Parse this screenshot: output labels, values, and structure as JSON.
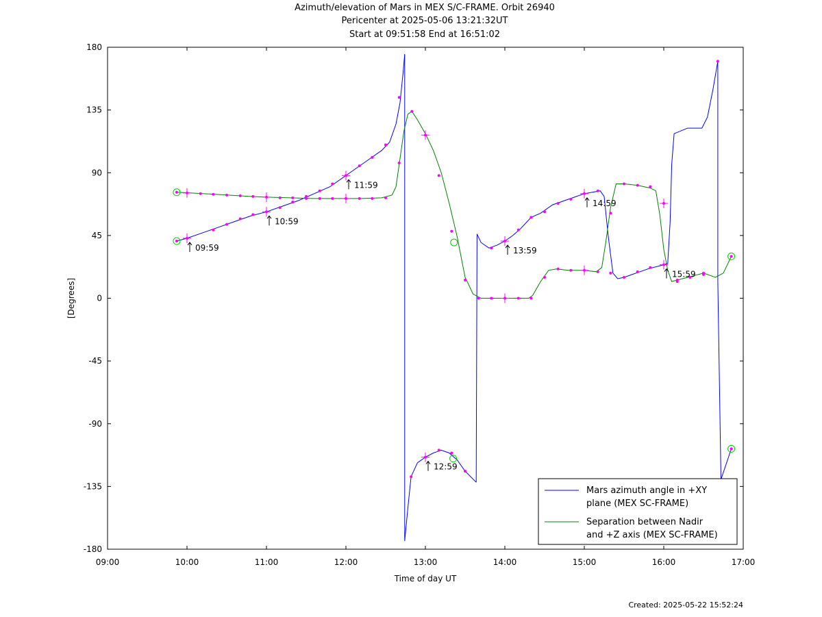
{
  "chart_data": {
    "type": "line",
    "title": "Azimuth/elevation of Mars in MEX S/C-FRAME.  Orbit 26940",
    "subtitle_lines": [
      "Pericenter at 2025-05-06 13:21:32UT",
      "Start at 09:51:58 End at 16:51:02"
    ],
    "xlabel": "Time of day UT",
    "ylabel": "[Degrees]",
    "xlim": [
      9.0,
      17.0
    ],
    "ylim": [
      -180,
      180
    ],
    "x_ticks": [
      {
        "value": 9,
        "label": "09:00"
      },
      {
        "value": 10,
        "label": "10:00"
      },
      {
        "value": 11,
        "label": "11:00"
      },
      {
        "value": 12,
        "label": "12:00"
      },
      {
        "value": 13,
        "label": "13:00"
      },
      {
        "value": 14,
        "label": "14:00"
      },
      {
        "value": 15,
        "label": "15:00"
      },
      {
        "value": 16,
        "label": "16:00"
      },
      {
        "value": 17,
        "label": "17:00"
      }
    ],
    "y_ticks": [
      {
        "value": 180,
        "label": "180"
      },
      {
        "value": 135,
        "label": "135"
      },
      {
        "value": 90,
        "label": "90"
      },
      {
        "value": 45,
        "label": "45"
      },
      {
        "value": 0,
        "label": "0"
      },
      {
        "value": -45,
        "label": "-45"
      },
      {
        "value": -90,
        "label": "-90"
      },
      {
        "value": -135,
        "label": "-135"
      },
      {
        "value": -180,
        "label": "-180"
      }
    ],
    "grid": false,
    "legend_position": "bottom-right",
    "series": [
      {
        "name": "Mars azimuth angle in +XY plane (MEX SC-FRAME)",
        "legend_lines": [
          "Mars azimuth angle in +XY",
          "plane (MEX SC-FRAME)"
        ],
        "color": "#0000ff",
        "segments": [
          [
            [
              9.87,
              41
            ],
            [
              10.0,
              43
            ],
            [
              10.2,
              47
            ],
            [
              10.4,
              51
            ],
            [
              10.6,
              55
            ],
            [
              10.8,
              59
            ],
            [
              11.0,
              62
            ],
            [
              11.2,
              66
            ],
            [
              11.4,
              70
            ],
            [
              11.6,
              75
            ],
            [
              11.8,
              80
            ],
            [
              12.0,
              88
            ],
            [
              12.15,
              94
            ],
            [
              12.3,
              100
            ],
            [
              12.45,
              106
            ],
            [
              12.55,
              112
            ],
            [
              12.63,
              125
            ],
            [
              12.68,
              140
            ],
            [
              12.72,
              162
            ],
            [
              12.74,
              175
            ]
          ],
          [
            [
              12.74,
              175
            ],
            [
              12.74,
              -174
            ]
          ],
          [
            [
              12.74,
              -174
            ],
            [
              12.78,
              -150
            ],
            [
              12.82,
              -128
            ],
            [
              12.9,
              -118
            ],
            [
              13.0,
              -114
            ],
            [
              13.1,
              -111
            ],
            [
              13.2,
              -109
            ],
            [
              13.3,
              -111
            ],
            [
              13.4,
              -116
            ],
            [
              13.5,
              -124
            ],
            [
              13.64,
              -132
            ]
          ],
          [
            [
              13.64,
              -132
            ],
            [
              13.65,
              46
            ]
          ],
          [
            [
              13.65,
              46
            ],
            [
              13.7,
              40
            ],
            [
              13.8,
              36
            ],
            [
              13.9,
              38
            ],
            [
              14.0,
              41
            ],
            [
              14.1,
              45
            ],
            [
              14.2,
              50
            ],
            [
              14.33,
              58
            ],
            [
              14.45,
              61
            ],
            [
              14.6,
              67
            ],
            [
              14.75,
              70
            ],
            [
              14.9,
              73
            ],
            [
              15.0,
              75
            ],
            [
              15.1,
              76
            ],
            [
              15.2,
              77
            ],
            [
              15.25,
              73
            ],
            [
              15.3,
              45
            ],
            [
              15.36,
              18
            ],
            [
              15.42,
              14
            ],
            [
              15.5,
              15
            ],
            [
              15.6,
              17
            ],
            [
              15.7,
              19
            ],
            [
              15.8,
              21
            ],
            [
              16.0,
              24
            ],
            [
              16.05,
              25
            ],
            [
              16.08,
              55
            ],
            [
              16.1,
              96
            ],
            [
              16.13,
              118
            ],
            [
              16.3,
              122
            ],
            [
              16.48,
              122
            ],
            [
              16.55,
              130
            ],
            [
              16.62,
              150
            ],
            [
              16.68,
              170
            ]
          ],
          [
            [
              16.68,
              170
            ],
            [
              16.68,
              12
            ]
          ],
          [
            [
              16.68,
              12
            ],
            [
              16.72,
              -130
            ],
            [
              16.85,
              -108
            ]
          ]
        ],
        "markers": [
          [
            9.87,
            41
          ],
          [
            10.0,
            43
          ],
          [
            10.33,
            49
          ],
          [
            10.5,
            53
          ],
          [
            10.67,
            57
          ],
          [
            10.83,
            60
          ],
          [
            11.0,
            62
          ],
          [
            11.17,
            65
          ],
          [
            11.33,
            69
          ],
          [
            11.5,
            73
          ],
          [
            11.67,
            77
          ],
          [
            11.83,
            82
          ],
          [
            12.0,
            88
          ],
          [
            12.17,
            95
          ],
          [
            12.33,
            101
          ],
          [
            12.5,
            110
          ],
          [
            12.67,
            144
          ],
          [
            12.82,
            -128
          ],
          [
            13.0,
            -114
          ],
          [
            13.17,
            -109
          ],
          [
            13.33,
            -111
          ],
          [
            13.5,
            -124
          ],
          [
            13.83,
            36
          ],
          [
            14.0,
            41
          ],
          [
            14.17,
            49
          ],
          [
            14.33,
            58
          ],
          [
            14.5,
            62
          ],
          [
            14.67,
            68
          ],
          [
            14.83,
            71
          ],
          [
            15.0,
            75
          ],
          [
            15.17,
            77
          ],
          [
            15.33,
            18
          ],
          [
            15.5,
            15
          ],
          [
            15.67,
            19
          ],
          [
            15.83,
            22
          ],
          [
            16.0,
            24
          ],
          [
            16.17,
            12
          ],
          [
            16.33,
            15
          ],
          [
            16.5,
            17
          ],
          [
            16.68,
            170
          ],
          [
            16.85,
            -108
          ]
        ],
        "crosses": [
          [
            10.0,
            43
          ],
          [
            11.0,
            62
          ],
          [
            12.0,
            88
          ],
          [
            13.0,
            -114
          ],
          [
            14.0,
            41
          ],
          [
            15.0,
            75
          ],
          [
            16.0,
            24
          ]
        ],
        "circles": [
          [
            9.87,
            41
          ],
          [
            13.35,
            -115
          ],
          [
            16.85,
            -108
          ]
        ]
      },
      {
        "name": "Separation between Nadir and +Z axis (MEX SC-FRAME)",
        "legend_lines": [
          "Separation between Nadir",
          "and +Z axis (MEX SC-FRAME)"
        ],
        "color": "#008000",
        "segments": [
          [
            [
              9.87,
              76
            ],
            [
              10.2,
              75
            ],
            [
              10.5,
              74
            ],
            [
              10.8,
              73
            ],
            [
              11.0,
              72.5
            ],
            [
              11.3,
              72
            ],
            [
              11.6,
              71.5
            ],
            [
              11.9,
              71.5
            ],
            [
              12.2,
              71.5
            ],
            [
              12.45,
              72
            ],
            [
              12.58,
              74
            ],
            [
              12.63,
              80
            ],
            [
              12.68,
              100
            ],
            [
              12.73,
              120
            ],
            [
              12.78,
              132
            ],
            [
              12.83,
              134
            ],
            [
              12.9,
              128
            ],
            [
              13.0,
              118
            ],
            [
              13.1,
              106
            ],
            [
              13.2,
              90
            ],
            [
              13.3,
              68
            ],
            [
              13.4,
              44
            ],
            [
              13.5,
              15
            ],
            [
              13.6,
              3
            ],
            [
              13.7,
              0
            ],
            [
              13.9,
              0
            ],
            [
              14.1,
              0
            ],
            [
              14.3,
              0
            ],
            [
              14.35,
              2
            ],
            [
              14.45,
              12
            ],
            [
              14.55,
              20
            ],
            [
              14.65,
              21
            ],
            [
              14.8,
              20
            ],
            [
              15.0,
              20
            ],
            [
              15.15,
              19
            ],
            [
              15.22,
              22
            ],
            [
              15.27,
              40
            ],
            [
              15.33,
              65
            ],
            [
              15.4,
              82
            ],
            [
              15.5,
              82
            ],
            [
              15.67,
              81
            ],
            [
              15.83,
              79
            ],
            [
              15.9,
              77
            ],
            [
              15.95,
              60
            ],
            [
              16.0,
              35
            ],
            [
              16.05,
              20
            ],
            [
              16.1,
              12
            ],
            [
              16.3,
              15
            ],
            [
              16.5,
              18
            ],
            [
              16.65,
              15
            ],
            [
              16.75,
              18
            ],
            [
              16.85,
              30
            ]
          ]
        ],
        "markers": [
          [
            9.87,
            76
          ],
          [
            10.0,
            75.5
          ],
          [
            10.17,
            75
          ],
          [
            10.33,
            74.5
          ],
          [
            10.5,
            74
          ],
          [
            10.67,
            73.5
          ],
          [
            10.83,
            73
          ],
          [
            11.0,
            72.5
          ],
          [
            11.17,
            72
          ],
          [
            11.33,
            72
          ],
          [
            11.5,
            71.5
          ],
          [
            11.67,
            71.5
          ],
          [
            11.83,
            71.5
          ],
          [
            12.0,
            71.5
          ],
          [
            12.17,
            71.5
          ],
          [
            12.33,
            71.5
          ],
          [
            12.5,
            72
          ],
          [
            12.67,
            97
          ],
          [
            12.83,
            134
          ],
          [
            13.0,
            117
          ],
          [
            13.17,
            88
          ],
          [
            13.33,
            48
          ],
          [
            13.5,
            13
          ],
          [
            13.67,
            0
          ],
          [
            13.83,
            0
          ],
          [
            14.0,
            0
          ],
          [
            14.17,
            0
          ],
          [
            14.33,
            0
          ],
          [
            14.5,
            15
          ],
          [
            14.67,
            21
          ],
          [
            14.83,
            20
          ],
          [
            15.0,
            20
          ],
          [
            15.17,
            19
          ],
          [
            15.33,
            61
          ],
          [
            15.5,
            82
          ],
          [
            15.67,
            81
          ],
          [
            15.83,
            80
          ],
          [
            16.0,
            68
          ],
          [
            16.17,
            13
          ],
          [
            16.5,
            18
          ],
          [
            16.85,
            30
          ]
        ],
        "crosses": [
          [
            10.0,
            75.5
          ],
          [
            11.0,
            72.5
          ],
          [
            12.0,
            71.5
          ],
          [
            13.0,
            117
          ],
          [
            14.0,
            0
          ],
          [
            15.0,
            20
          ],
          [
            16.0,
            68
          ]
        ],
        "circles": [
          [
            9.87,
            76
          ],
          [
            13.36,
            40
          ],
          [
            16.85,
            30
          ]
        ]
      }
    ],
    "annotations": [
      {
        "label": "09:59",
        "x": 10.0,
        "y": 43
      },
      {
        "label": "10:59",
        "x": 11.0,
        "y": 62
      },
      {
        "label": "11:59",
        "x": 12.0,
        "y": 88
      },
      {
        "label": "12:59",
        "x": 13.0,
        "y": -114
      },
      {
        "label": "13:59",
        "x": 14.0,
        "y": 41
      },
      {
        "label": "14:59",
        "x": 15.0,
        "y": 75
      },
      {
        "label": "15:59",
        "x": 16.0,
        "y": 24
      }
    ],
    "created": "Created: 2025-05-22 15:52:24"
  }
}
